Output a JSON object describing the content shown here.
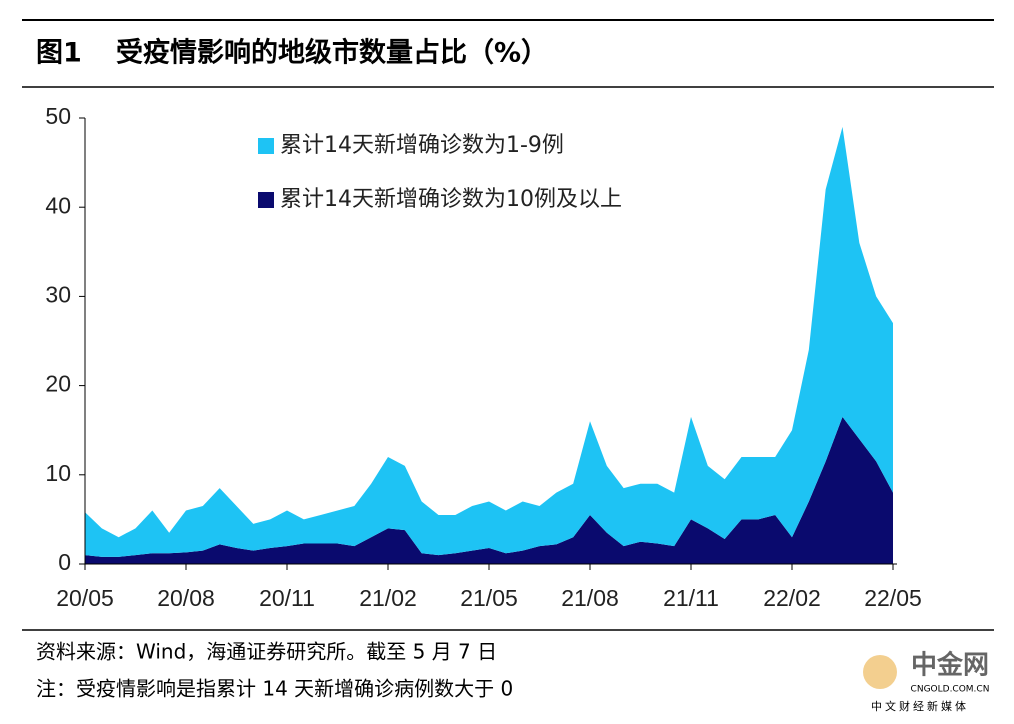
{
  "header": {
    "figure": "图1",
    "title": "受疫情影响的地级市数量占比（%）"
  },
  "chart_data": {
    "type": "stacked_area",
    "x": [
      0,
      0.5,
      1,
      1.5,
      2,
      2.5,
      3,
      3.5,
      4,
      4.5,
      5,
      5.5,
      6,
      6.5,
      7,
      7.5,
      8,
      8.5,
      9,
      9.5,
      10,
      10.5,
      11,
      11.5,
      12,
      12.5,
      13,
      13.5,
      14,
      14.5,
      15,
      15.5,
      16,
      16.5,
      17,
      17.5,
      18,
      18.5,
      19,
      19.5,
      20,
      20.5,
      21,
      21.5,
      22,
      22.5,
      23,
      23.5,
      24
    ],
    "xlim": [
      0,
      24
    ],
    "xticks": [
      {
        "value": 0,
        "label": "20/05"
      },
      {
        "value": 3,
        "label": "20/08"
      },
      {
        "value": 6,
        "label": "20/11"
      },
      {
        "value": 9,
        "label": "21/02"
      },
      {
        "value": 12,
        "label": "21/05"
      },
      {
        "value": 15,
        "label": "21/08"
      },
      {
        "value": 18,
        "label": "21/11"
      },
      {
        "value": 21,
        "label": "22/02"
      },
      {
        "value": 24,
        "label": "22/05"
      }
    ],
    "ylim": [
      0,
      50
    ],
    "yticks": [
      0,
      10,
      20,
      30,
      40,
      50
    ],
    "series": [
      {
        "name": "累计14天新增确诊数为1-9例",
        "color": "#1ec3f4",
        "values": [
          4.8,
          3.2,
          2.2,
          3.0,
          4.8,
          2.3,
          4.7,
          5.0,
          6.3,
          4.7,
          3.0,
          3.2,
          4.0,
          2.7,
          3.2,
          3.7,
          4.5,
          6.0,
          8.0,
          7.2,
          5.8,
          4.5,
          4.3,
          5.0,
          5.2,
          4.8,
          5.5,
          4.5,
          5.8,
          6.0,
          10.5,
          7.5,
          6.5,
          6.5,
          6.7,
          6.0,
          11.5,
          7.0,
          6.7,
          7.0,
          7.0,
          6.5,
          12.0,
          17.0,
          30.5,
          32.5,
          22.0,
          18.5,
          19.0
        ]
      },
      {
        "name": "累计14天新增确诊数为10例及以上",
        "color": "#0a0a6e",
        "values": [
          1.0,
          0.8,
          0.8,
          1.0,
          1.2,
          1.2,
          1.3,
          1.5,
          2.2,
          1.8,
          1.5,
          1.8,
          2.0,
          2.3,
          2.3,
          2.3,
          2.0,
          3.0,
          4.0,
          3.8,
          1.2,
          1.0,
          1.2,
          1.5,
          1.8,
          1.2,
          1.5,
          2.0,
          2.2,
          3.0,
          5.5,
          3.5,
          2.0,
          2.5,
          2.3,
          2.0,
          5.0,
          4.0,
          2.8,
          5.0,
          5.0,
          5.5,
          3.0,
          7.0,
          11.5,
          16.5,
          14.0,
          11.5,
          8.0
        ]
      }
    ]
  },
  "notes": [
    "资料来源：Wind，海通证券研究所。截至 5 月 7 日",
    "注：受疫情影响是指累计 14 天新增确诊病例数大于 0"
  ],
  "watermark": {
    "name": "中金网",
    "site": "CNGOLD.COM.CN",
    "tagline": "中文财经新媒体"
  }
}
